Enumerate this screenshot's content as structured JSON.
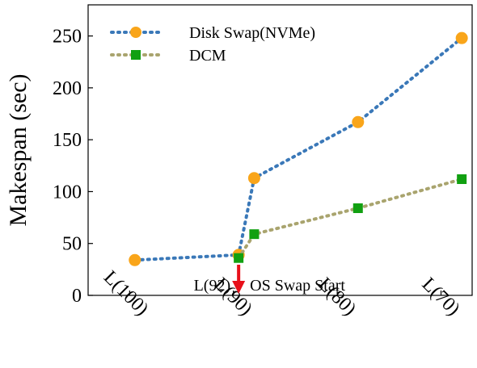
{
  "chart_data": {
    "type": "line",
    "ylabel": "Makespan (sec)",
    "xlabel": "",
    "ylim": [
      0,
      280
    ],
    "yticks": [
      0,
      50,
      100,
      150,
      200,
      250
    ],
    "x_ticks": [
      {
        "label": "L(100)",
        "value": 100
      },
      {
        "label": "L(90)",
        "value": 90
      },
      {
        "label": "L(80)",
        "value": 80
      },
      {
        "label": "L(70)",
        "value": 70
      }
    ],
    "x_order": "descending",
    "xlim": [
      104,
      67
    ],
    "series": [
      {
        "name": "Disk Swap(NVMe)",
        "color": "#3a78b8",
        "marker": "circle",
        "marker_color": "#f9a51a",
        "points": [
          {
            "x": 99.5,
            "y": 34
          },
          {
            "x": 89.5,
            "y": 39
          },
          {
            "x": 88,
            "y": 113
          },
          {
            "x": 78,
            "y": 167
          },
          {
            "x": 68,
            "y": 248
          }
        ]
      },
      {
        "name": "DCM",
        "color": "#a9a46e",
        "marker": "square",
        "marker_color": "#11a011",
        "points": [
          {
            "x": 89.5,
            "y": 36
          },
          {
            "x": 88,
            "y": 59
          },
          {
            "x": 78,
            "y": 84
          },
          {
            "x": 68,
            "y": 112
          }
        ]
      }
    ],
    "legend": {
      "position": "top-left"
    },
    "grid": false,
    "annotation": {
      "left_text": "L(92)",
      "right_text": "OS Swap Start",
      "x": 89.5,
      "arrow_color": "#e8101a"
    }
  }
}
